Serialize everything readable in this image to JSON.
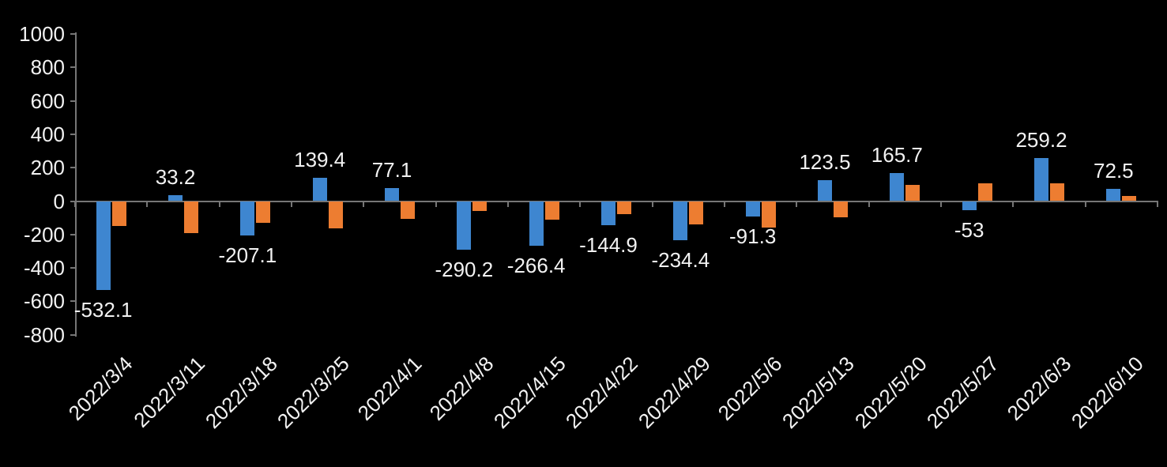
{
  "chart_data": {
    "type": "bar",
    "title": "",
    "xlabel": "",
    "ylabel": "",
    "categories": [
      "2022/3/4",
      "2022/3/11",
      "2022/3/18",
      "2022/3/25",
      "2022/4/1",
      "2022/4/8",
      "2022/4/15",
      "2022/4/22",
      "2022/4/29",
      "2022/5/6",
      "2022/5/13",
      "2022/5/20",
      "2022/5/27",
      "2022/6/3",
      "2022/6/10"
    ],
    "series": [
      {
        "name": "series1-blue",
        "color": "#3E86D0",
        "values": [
          -532.1,
          33.2,
          -207.1,
          139.4,
          77.1,
          -290.2,
          -266.4,
          -144.9,
          -234.4,
          -91.3,
          123.5,
          165.7,
          -53,
          259.2,
          72.5
        ],
        "labels": [
          "-532.1",
          "33.2",
          "-207.1",
          "139.4",
          "77.1",
          "-290.2",
          "-266.4",
          "-144.9",
          "-234.4",
          "-91.3",
          "123.5",
          "165.7",
          "-53",
          "259.2",
          "72.5"
        ]
      },
      {
        "name": "series2-orange",
        "color": "#ED7D31",
        "values": [
          -150,
          -190,
          -130,
          -165,
          -105,
          -60,
          -110,
          -80,
          -140,
          -160,
          -95,
          95,
          105,
          105,
          30
        ]
      }
    ],
    "ylim": [
      -800,
      1000
    ],
    "yticks": [
      1000,
      800,
      600,
      400,
      200,
      0,
      -200,
      -400,
      -600,
      -800
    ],
    "grid": false,
    "legend_position": "none",
    "data_labels_series_index": 0,
    "background_color": "#000000",
    "axis_color": "#767676",
    "text_color": "#F2F2F2"
  }
}
